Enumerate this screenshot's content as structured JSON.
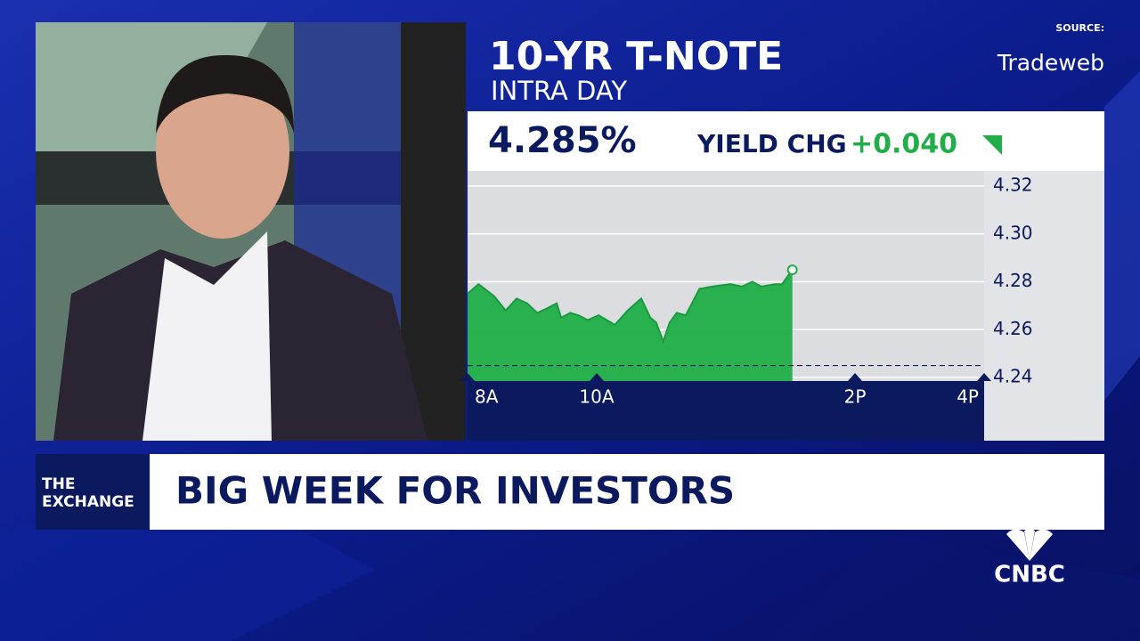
{
  "source_label": "SOURCE:",
  "source": "Tradeweb",
  "chart_data": {
    "type": "area",
    "title": "10-YR T-NOTE",
    "subtitle": "INTRA DAY",
    "readout": "4.285%",
    "change_label": "YIELD CHG",
    "change": "+0.040",
    "color": "#1fae48",
    "x": [
      8.0,
      8.17,
      8.41,
      8.59,
      8.76,
      8.92,
      9.08,
      9.24,
      9.38,
      9.45,
      9.59,
      9.72,
      9.86,
      10.03,
      10.28,
      10.48,
      10.69,
      10.83,
      10.92,
      11.03,
      11.13,
      11.24,
      11.38,
      11.59,
      11.79,
      12.07,
      12.25,
      12.41,
      12.55,
      12.76,
      12.87,
      13.03
    ],
    "values": [
      4.275,
      4.279,
      4.274,
      4.268,
      4.273,
      4.271,
      4.267,
      4.269,
      4.271,
      4.265,
      4.267,
      4.266,
      4.264,
      4.266,
      4.262,
      4.268,
      4.273,
      4.265,
      4.263,
      4.255,
      4.263,
      4.267,
      4.266,
      4.277,
      4.278,
      4.279,
      4.278,
      4.28,
      4.278,
      4.279,
      4.279,
      4.285
    ],
    "baseline": 4.245,
    "xlim": [
      8,
      16
    ],
    "xticks": [
      {
        "value": 8,
        "label": "8A"
      },
      {
        "value": 10,
        "label": "10A"
      },
      {
        "value": 14,
        "label": "2P"
      },
      {
        "value": 16,
        "label": "4P"
      }
    ],
    "ylim": [
      4.24,
      4.32
    ],
    "yticks": [
      4.32,
      {
        "value": 4.3,
        "label": "4.30"
      },
      4.28,
      4.26,
      4.24
    ],
    "grid": true
  },
  "lower_third": {
    "tag_line1": "THE",
    "tag_line2": "EXCHANGE",
    "headline": "BIG WEEK FOR INVESTORS"
  },
  "network": "CNBC"
}
